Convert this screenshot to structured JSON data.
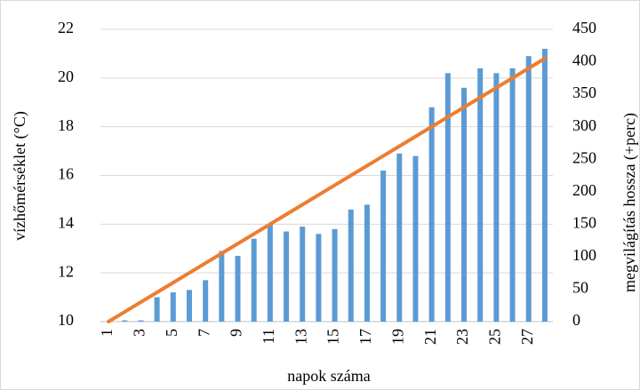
{
  "chart_data": {
    "type": "combo",
    "x_label": "napok száma",
    "y_label": "vízhőmérséklet (°C)",
    "y2_label": "megvilágítás hossza (+perc)",
    "categories": [
      "1",
      null,
      "3",
      null,
      "5",
      null,
      "7",
      null,
      "9",
      null,
      "11",
      null,
      "13",
      null,
      "15",
      null,
      "17",
      null,
      "19",
      null,
      "21",
      null,
      "23",
      null,
      "25",
      null,
      "27",
      null
    ],
    "series": [
      {
        "type": "bar",
        "color": "#5b9bd5",
        "values": [
          10.0,
          10.05,
          10.05,
          11.0,
          11.2,
          11.3,
          11.7,
          12.9,
          12.7,
          13.4,
          14.0,
          13.7,
          13.9,
          13.6,
          13.8,
          14.6,
          14.8,
          16.2,
          16.9,
          16.8,
          18.8,
          20.2,
          19.6,
          20.4,
          20.2,
          20.4,
          20.9,
          21.2
        ]
      },
      {
        "type": "line",
        "axis": "y2",
        "color": "#ed7d31",
        "values": [
          0,
          15,
          30,
          45,
          60,
          75,
          90,
          105,
          120,
          135,
          150,
          165,
          180,
          195,
          210,
          225,
          240,
          255,
          270,
          285,
          300,
          315,
          330,
          345,
          360,
          375,
          390,
          405
        ]
      }
    ],
    "ylim": [
      10,
      22
    ],
    "yticks": [
      10,
      12,
      14,
      16,
      18,
      20,
      22
    ],
    "y2lim": [
      0,
      450
    ],
    "y2ticks": [
      0,
      50,
      100,
      150,
      200,
      250,
      300,
      350,
      400,
      450
    ],
    "grid": true
  }
}
